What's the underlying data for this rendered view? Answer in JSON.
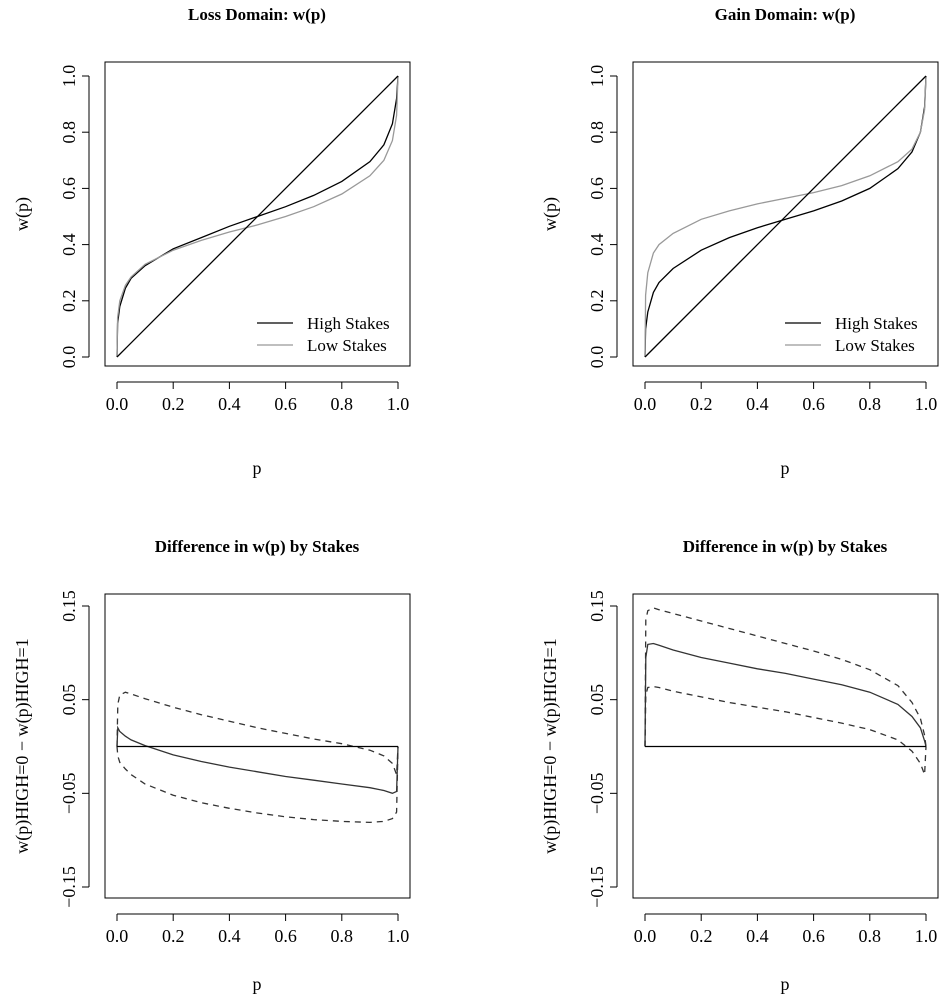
{
  "chart_data": [
    {
      "type": "line",
      "title": "Loss Domain: w(p)",
      "xlabel": "p",
      "ylabel": "w(p)",
      "xlim": [
        0,
        1
      ],
      "ylim": [
        0,
        1
      ],
      "x_ticks": [
        "0.0",
        "0.2",
        "0.4",
        "0.6",
        "0.8",
        "1.0"
      ],
      "y_ticks": [
        "0.0",
        "0.2",
        "0.4",
        "0.6",
        "0.8",
        "1.0"
      ],
      "legend": {
        "position": "bottom-right",
        "entries": [
          "High Stakes",
          "Low Stakes"
        ]
      },
      "x": [
        0,
        0.002,
        0.01,
        0.03,
        0.05,
        0.1,
        0.2,
        0.3,
        0.4,
        0.5,
        0.6,
        0.7,
        0.8,
        0.9,
        0.95,
        0.98,
        0.995,
        1
      ],
      "series": [
        {
          "name": "High Stakes",
          "color": "#000000",
          "values": [
            0,
            0.12,
            0.18,
            0.245,
            0.28,
            0.325,
            0.385,
            0.425,
            0.465,
            0.5,
            0.535,
            0.575,
            0.625,
            0.695,
            0.755,
            0.83,
            0.92,
            1
          ]
        },
        {
          "name": "Low Stakes",
          "color": "#999999",
          "values": [
            0,
            0.14,
            0.2,
            0.255,
            0.285,
            0.33,
            0.38,
            0.415,
            0.445,
            0.47,
            0.5,
            0.535,
            0.58,
            0.645,
            0.7,
            0.77,
            0.86,
            1
          ]
        },
        {
          "name": "",
          "color": "#000000",
          "x": [
            0,
            1
          ],
          "values": [
            0,
            1
          ]
        }
      ]
    },
    {
      "type": "line",
      "title": "Gain Domain: w(p)",
      "xlabel": "p",
      "ylabel": "w(p)",
      "xlim": [
        0,
        1
      ],
      "ylim": [
        0,
        1
      ],
      "x_ticks": [
        "0.0",
        "0.2",
        "0.4",
        "0.6",
        "0.8",
        "1.0"
      ],
      "y_ticks": [
        "0.0",
        "0.2",
        "0.4",
        "0.6",
        "0.8",
        "1.0"
      ],
      "legend": {
        "position": "bottom-right",
        "entries": [
          "High Stakes",
          "Low Stakes"
        ]
      },
      "x": [
        0,
        0.002,
        0.01,
        0.03,
        0.05,
        0.1,
        0.2,
        0.3,
        0.4,
        0.5,
        0.6,
        0.7,
        0.8,
        0.9,
        0.95,
        0.98,
        0.995,
        1
      ],
      "series": [
        {
          "name": "High Stakes",
          "color": "#000000",
          "values": [
            0,
            0.1,
            0.16,
            0.23,
            0.265,
            0.315,
            0.38,
            0.425,
            0.46,
            0.49,
            0.52,
            0.555,
            0.6,
            0.67,
            0.73,
            0.8,
            0.89,
            1
          ]
        },
        {
          "name": "Low Stakes",
          "color": "#999999",
          "values": [
            0,
            0.22,
            0.3,
            0.37,
            0.4,
            0.44,
            0.49,
            0.52,
            0.545,
            0.565,
            0.585,
            0.61,
            0.645,
            0.695,
            0.74,
            0.8,
            0.88,
            1
          ]
        },
        {
          "name": "",
          "color": "#000000",
          "x": [
            0,
            1
          ],
          "values": [
            0,
            1
          ]
        }
      ]
    },
    {
      "type": "line",
      "title": "Difference in w(p) by Stakes",
      "xlabel": "p",
      "ylabel": "w(p)HIGH=0 − w(p)HIGH=1",
      "xlim": [
        0,
        1
      ],
      "ylim": [
        -0.15,
        0.15
      ],
      "x_ticks": [
        "0.0",
        "0.2",
        "0.4",
        "0.6",
        "0.8",
        "1.0"
      ],
      "y_ticks": [
        "−0.15",
        "−0.05",
        "0.05",
        "0.15"
      ],
      "x": [
        0,
        0.003,
        0.01,
        0.03,
        0.05,
        0.1,
        0.2,
        0.3,
        0.4,
        0.5,
        0.6,
        0.7,
        0.8,
        0.9,
        0.95,
        0.98,
        0.995,
        1
      ],
      "series": [
        {
          "name": "",
          "style": "solid",
          "color": "#333333",
          "values": [
            0,
            0.02,
            0.016,
            0.011,
            0.007,
            0.001,
            -0.009,
            -0.016,
            -0.022,
            -0.027,
            -0.032,
            -0.036,
            -0.04,
            -0.044,
            -0.047,
            -0.05,
            -0.048,
            0
          ]
        },
        {
          "name": "",
          "style": "dashed",
          "color": "#333333",
          "values": [
            0,
            0.045,
            0.055,
            0.058,
            0.056,
            0.051,
            0.042,
            0.034,
            0.027,
            0.02,
            0.014,
            0.008,
            0.003,
            -0.004,
            -0.01,
            -0.018,
            -0.03,
            0
          ]
        },
        {
          "name": "",
          "style": "dashed",
          "color": "#333333",
          "values": [
            0,
            -0.01,
            -0.017,
            -0.024,
            -0.03,
            -0.04,
            -0.052,
            -0.06,
            -0.066,
            -0.071,
            -0.075,
            -0.078,
            -0.08,
            -0.081,
            -0.08,
            -0.077,
            -0.07,
            0
          ]
        },
        {
          "name": "",
          "style": "solid",
          "color": "#000000",
          "x": [
            0,
            1
          ],
          "values": [
            0,
            0
          ]
        }
      ]
    },
    {
      "type": "line",
      "title": "Difference in w(p) by Stakes",
      "xlabel": "p",
      "ylabel": "w(p)HIGH=0 − w(p)HIGH=1",
      "xlim": [
        0,
        1
      ],
      "ylim": [
        -0.15,
        0.15
      ],
      "x_ticks": [
        "0.0",
        "0.2",
        "0.4",
        "0.6",
        "0.8",
        "1.0"
      ],
      "y_ticks": [
        "−0.15",
        "−0.05",
        "0.05",
        "0.15"
      ],
      "x": [
        0,
        0.003,
        0.01,
        0.03,
        0.05,
        0.1,
        0.2,
        0.3,
        0.4,
        0.5,
        0.6,
        0.7,
        0.8,
        0.9,
        0.95,
        0.98,
        0.995,
        1
      ],
      "series": [
        {
          "name": "",
          "style": "solid",
          "color": "#333333",
          "values": [
            0,
            0.095,
            0.109,
            0.11,
            0.108,
            0.103,
            0.095,
            0.089,
            0.083,
            0.078,
            0.072,
            0.066,
            0.058,
            0.045,
            0.032,
            0.02,
            0.006,
            0
          ]
        },
        {
          "name": "",
          "style": "dashed",
          "color": "#333333",
          "values": [
            0,
            0.135,
            0.145,
            0.148,
            0.146,
            0.142,
            0.134,
            0.126,
            0.118,
            0.11,
            0.102,
            0.093,
            0.082,
            0.065,
            0.047,
            0.03,
            0.012,
            0
          ]
        },
        {
          "name": "",
          "style": "dashed",
          "color": "#333333",
          "values": [
            0,
            0.055,
            0.063,
            0.064,
            0.063,
            0.059,
            0.053,
            0.047,
            0.042,
            0.037,
            0.031,
            0.025,
            0.018,
            0.007,
            -0.005,
            -0.018,
            -0.03,
            0
          ]
        },
        {
          "name": "",
          "style": "solid",
          "color": "#000000",
          "x": [
            0,
            1
          ],
          "values": [
            0,
            0
          ]
        }
      ]
    }
  ]
}
